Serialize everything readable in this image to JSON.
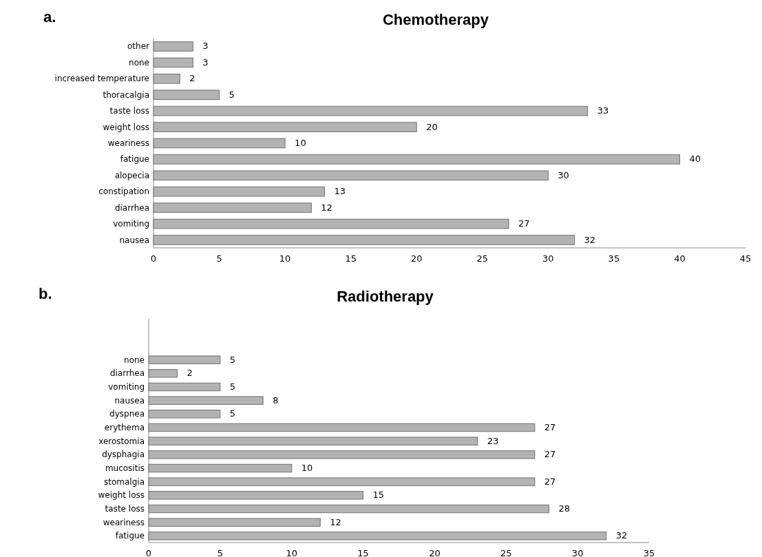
{
  "chart_data": [
    {
      "type": "bar",
      "orientation": "horizontal",
      "title": "Chemotherapy",
      "annotations": [
        "a."
      ],
      "categories": [
        "other",
        "none",
        "increased temperature",
        "thoracalgia",
        "taste loss",
        "weight loss",
        "weariness",
        "fatigue",
        "alopecia",
        "constipation",
        "diarrhea",
        "vomiting",
        "nausea"
      ],
      "values": [
        3,
        3,
        2,
        5,
        33,
        20,
        10,
        40,
        30,
        13,
        12,
        27,
        32
      ],
      "color": "#b3b3b3",
      "xlim": [
        0,
        45
      ],
      "xticks": [
        0,
        5,
        10,
        15,
        20,
        25,
        30,
        35,
        40,
        45
      ],
      "data_labels": true
    },
    {
      "type": "bar",
      "orientation": "horizontal",
      "title": "Radiotherapy",
      "annotations": [
        "b."
      ],
      "categories": [
        "none",
        "diarrhea",
        "vomiting",
        "nausea",
        "dyspnea",
        "erythema",
        "xerostomia",
        "dysphagia",
        "mucositis",
        "stomalgia",
        "weight loss",
        "taste loss",
        "weariness",
        "fatigue"
      ],
      "values": [
        5,
        2,
        5,
        8,
        5,
        27,
        23,
        27,
        10,
        27,
        15,
        28,
        12,
        32
      ],
      "color": "#b3b3b3",
      "xlim": [
        0,
        35
      ],
      "xticks": [
        0,
        5,
        10,
        15,
        20,
        25,
        30,
        35
      ],
      "data_labels": true
    }
  ]
}
